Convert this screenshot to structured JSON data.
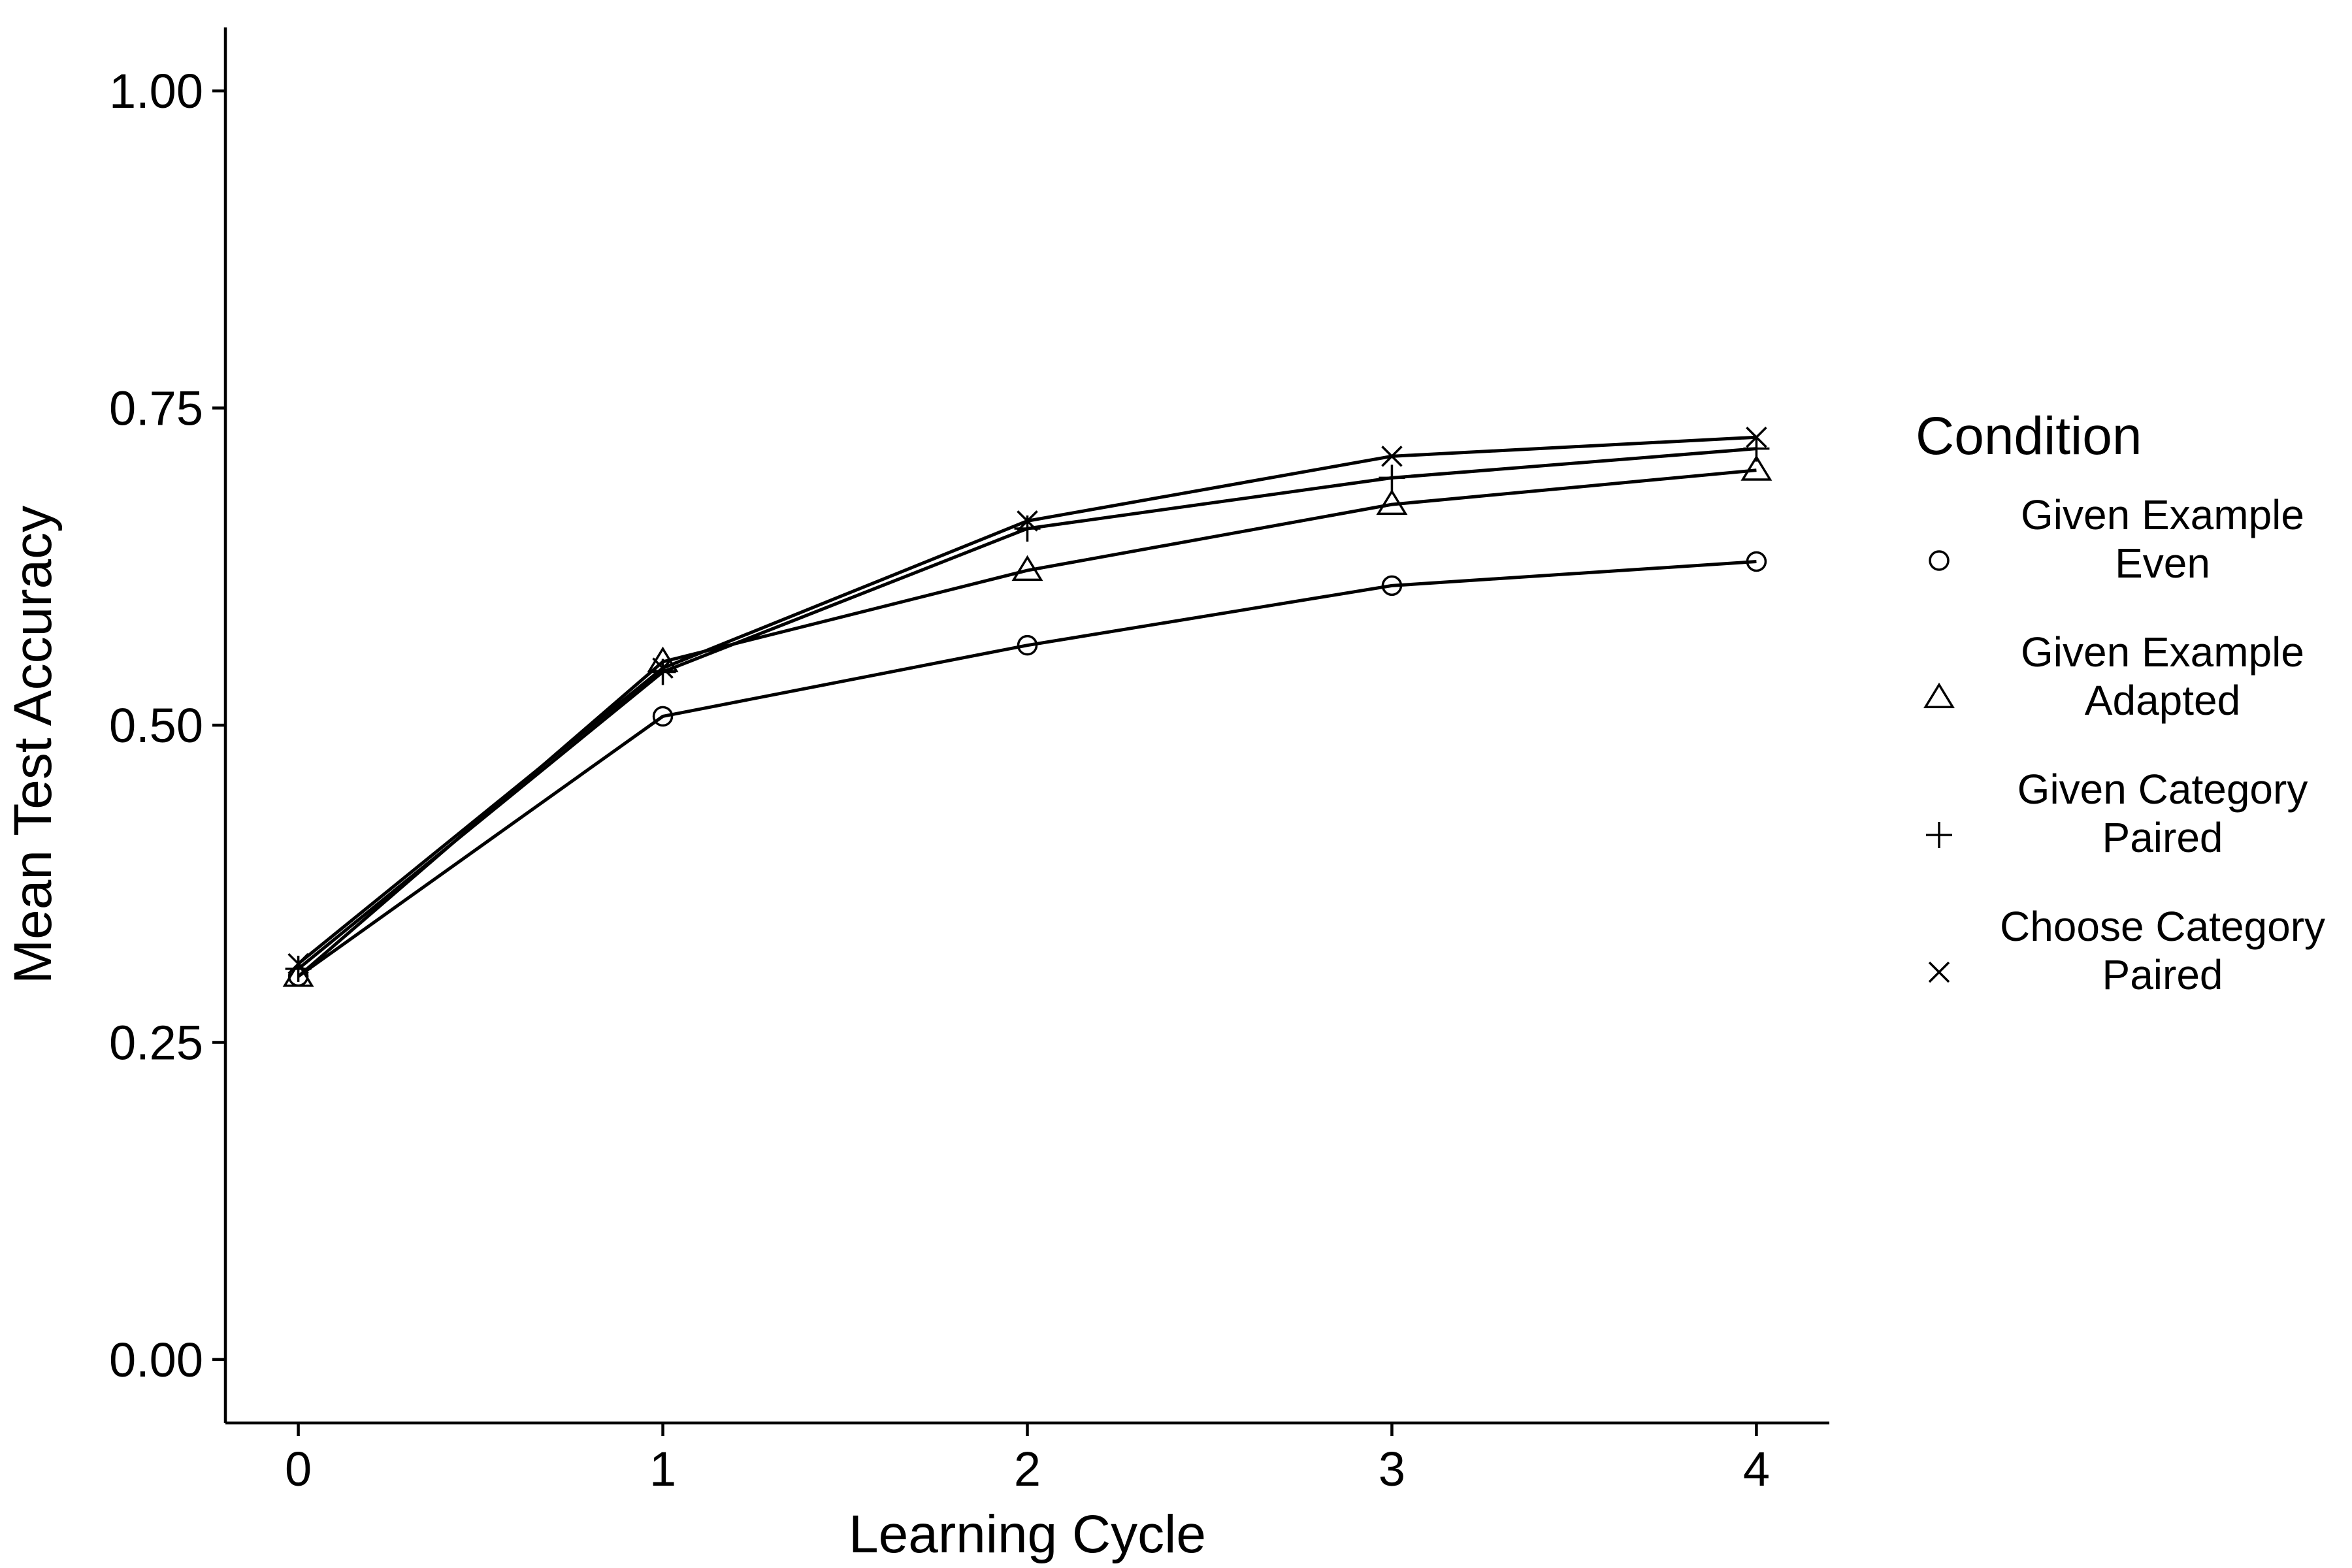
{
  "chart_data": {
    "type": "line",
    "xlabel": "Learning Cycle",
    "ylabel": "Mean Test Accuracy",
    "x": [
      0,
      1,
      2,
      3,
      4
    ],
    "xlim": [
      -0.2,
      4.2
    ],
    "ylim": [
      -0.05,
      1.05
    ],
    "x_ticks": [
      "0",
      "1",
      "2",
      "3",
      "4"
    ],
    "y_ticks": [
      "0.00",
      "0.25",
      "0.50",
      "0.75",
      "1.00"
    ],
    "y_tick_values": [
      0,
      0.25,
      0.5,
      0.75,
      1.0
    ],
    "grid": false,
    "legend": {
      "title": "Condition",
      "placement": "right"
    },
    "series": [
      {
        "name_lines": [
          "Given Example",
          "Even"
        ],
        "marker": "circle",
        "values": [
          0.302,
          0.507,
          0.563,
          0.61,
          0.629
        ]
      },
      {
        "name_lines": [
          "Given Example",
          "Adapted"
        ],
        "marker": "triangle",
        "values": [
          0.302,
          0.55,
          0.622,
          0.674,
          0.701
        ]
      },
      {
        "name_lines": [
          "Given Category",
          "Paired"
        ],
        "marker": "plus",
        "values": [
          0.308,
          0.542,
          0.655,
          0.695,
          0.718
        ]
      },
      {
        "name_lines": [
          "Choose Category",
          "Paired"
        ],
        "marker": "cross",
        "values": [
          0.312,
          0.545,
          0.661,
          0.712,
          0.727
        ]
      }
    ],
    "colors": {
      "line": "#000000",
      "background": "#ffffff"
    }
  }
}
